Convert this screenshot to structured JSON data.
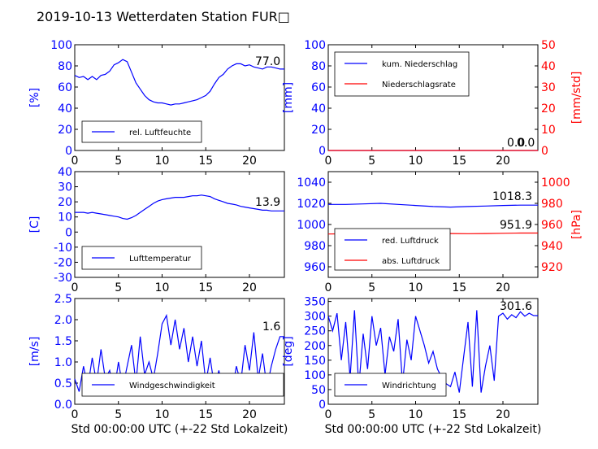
{
  "title": "2019-10-13 Wetterdaten Station FUR□",
  "x_axis_label": "Std 00:00:00 UTC (+-22 Std Lokalzeit)",
  "colors": {
    "left": "#0000ff",
    "right": "#ff0000",
    "frame": "#000000"
  },
  "chart_data": [
    {
      "id": "humidity",
      "type": "line",
      "xlim": [
        0,
        24
      ],
      "ylim": [
        0,
        100
      ],
      "xticks": [
        0,
        5,
        10,
        15,
        20
      ],
      "yticks": [
        0,
        20,
        40,
        60,
        80,
        100
      ],
      "ylabel": "[%]",
      "legend": [
        "rel. Luftfeuchte"
      ],
      "legend_position": "lower-left",
      "annotation": "77.0",
      "series": [
        {
          "name": "rel. Luftfeuchte",
          "axis": "left",
          "x": [
            0,
            0.5,
            1,
            1.5,
            2,
            2.5,
            3,
            3.5,
            4,
            4.5,
            5,
            5.5,
            6,
            6.5,
            7,
            7.5,
            8,
            8.5,
            9,
            9.5,
            10,
            10.5,
            11,
            11.5,
            12,
            12.5,
            13,
            13.5,
            14,
            14.5,
            15,
            15.5,
            16,
            16.5,
            17,
            17.5,
            18,
            18.5,
            19,
            19.5,
            20,
            20.5,
            21,
            21.5,
            22,
            22.5,
            23,
            23.5,
            24
          ],
          "y": [
            71,
            69,
            70,
            67,
            70,
            67,
            71,
            72,
            75,
            81,
            83,
            86,
            84,
            74,
            64,
            58,
            52,
            48,
            46,
            45,
            45,
            44,
            43,
            44,
            44,
            45,
            46,
            47,
            48,
            50,
            52,
            56,
            63,
            69,
            72,
            77,
            80,
            82,
            82,
            80,
            81,
            79,
            78,
            77,
            79,
            79,
            78,
            77,
            77
          ]
        }
      ]
    },
    {
      "id": "precipitation",
      "type": "line",
      "xlim": [
        0,
        24
      ],
      "ylim": [
        0,
        100
      ],
      "y2lim": [
        0,
        50
      ],
      "xticks": [
        0,
        5,
        10,
        15,
        20
      ],
      "yticks": [
        0,
        20,
        40,
        60,
        80,
        100
      ],
      "y2ticks": [
        0,
        10,
        20,
        30,
        40,
        50
      ],
      "ylabel": "[mm]",
      "y2label": "[mm/std]",
      "legend": [
        "kum. Niederschlag",
        "Niederschlagsrate"
      ],
      "legend_position": "upper-left",
      "annotations": [
        "0.0",
        "0.0"
      ],
      "series": [
        {
          "name": "kum. Niederschlag",
          "axis": "left",
          "x": [
            0,
            24
          ],
          "y": [
            0,
            0
          ]
        },
        {
          "name": "Niederschlagsrate",
          "axis": "right",
          "x": [
            0,
            24
          ],
          "y": [
            0,
            0
          ]
        }
      ]
    },
    {
      "id": "temperature",
      "type": "line",
      "xlim": [
        0,
        24
      ],
      "ylim": [
        -30,
        40
      ],
      "xticks": [
        0,
        5,
        10,
        15,
        20
      ],
      "yticks": [
        -30,
        -20,
        -10,
        0,
        10,
        20,
        30,
        40
      ],
      "ylabel": "[C]",
      "legend": [
        "Lufttemperatur"
      ],
      "legend_position": "lower-left",
      "annotation": "13.9",
      "series": [
        {
          "name": "Lufttemperatur",
          "axis": "left",
          "x": [
            0,
            0.5,
            1,
            1.5,
            2,
            2.5,
            3,
            3.5,
            4,
            4.5,
            5,
            5.5,
            6,
            6.5,
            7,
            7.5,
            8,
            8.5,
            9,
            9.5,
            10,
            10.5,
            11,
            11.5,
            12,
            12.5,
            13,
            13.5,
            14,
            14.5,
            15,
            15.5,
            16,
            16.5,
            17,
            17.5,
            18,
            18.5,
            19,
            19.5,
            20,
            20.5,
            21,
            21.5,
            22,
            22.5,
            23,
            23.5,
            24
          ],
          "y": [
            13,
            13,
            13,
            12.5,
            13,
            12.5,
            12,
            11.5,
            11,
            10.5,
            10,
            9,
            8.5,
            9.5,
            11,
            13,
            15,
            17,
            19,
            20.5,
            21.5,
            22,
            22.5,
            23,
            23,
            23,
            23.5,
            24,
            24,
            24.5,
            24,
            23.5,
            22,
            21,
            20,
            19,
            18.5,
            18,
            17,
            16.5,
            16,
            15.5,
            15,
            14.5,
            14.5,
            14,
            14,
            14,
            14
          ]
        }
      ]
    },
    {
      "id": "pressure",
      "type": "line",
      "xlim": [
        0,
        24
      ],
      "ylim": [
        950,
        1050
      ],
      "y2lim": [
        910,
        1010
      ],
      "xticks": [
        0,
        5,
        10,
        15,
        20
      ],
      "yticks": [
        960,
        980,
        1000,
        1020,
        1040
      ],
      "y2ticks": [
        920,
        940,
        960,
        980,
        1000
      ],
      "ylabel": "",
      "y2label": "[hPa]",
      "legend": [
        "red. Luftdruck",
        "abs. Luftdruck"
      ],
      "legend_position": "lower-left",
      "annotations": [
        "1018.3",
        "951.9"
      ],
      "series": [
        {
          "name": "red. Luftdruck",
          "axis": "left",
          "x": [
            0,
            2,
            4,
            6,
            8,
            10,
            12,
            14,
            16,
            18,
            20,
            22,
            24
          ],
          "y": [
            1019,
            1019,
            1019.5,
            1020,
            1019,
            1018,
            1017,
            1016.5,
            1017,
            1017.5,
            1018,
            1018.3,
            1018.3
          ]
        },
        {
          "name": "abs. Luftdruck",
          "axis": "right",
          "x": [
            0,
            2,
            4,
            6,
            8,
            10,
            12,
            14,
            16,
            18,
            20,
            22,
            24
          ],
          "y": [
            951,
            951.2,
            951.6,
            952,
            952.5,
            952.2,
            951.8,
            951.5,
            951.3,
            951.5,
            951.7,
            951.9,
            951.9
          ]
        }
      ]
    },
    {
      "id": "windspeed",
      "type": "line",
      "xlim": [
        0,
        24
      ],
      "ylim": [
        0,
        2.5
      ],
      "xticks": [
        0,
        5,
        10,
        15,
        20
      ],
      "yticks": [
        0.0,
        0.5,
        1.0,
        1.5,
        2.0,
        2.5
      ],
      "ylabel": "[m/s]",
      "xlabel": "Std 00:00:00 UTC (+-22 Std Lokalzeit)",
      "legend": [
        "Windgeschwindigkeit"
      ],
      "legend_position": "lower-left",
      "annotation": "1.6",
      "series": [
        {
          "name": "Windgeschwindigkeit",
          "axis": "left",
          "x": [
            0,
            0.5,
            1,
            1.5,
            2,
            2.5,
            3,
            3.5,
            4,
            4.5,
            5,
            5.5,
            6,
            6.5,
            7,
            7.5,
            8,
            8.5,
            9,
            9.5,
            10,
            10.5,
            11,
            11.5,
            12,
            12.5,
            13,
            13.5,
            14,
            14.5,
            15,
            15.5,
            16,
            16.5,
            17,
            17.5,
            18,
            18.5,
            19,
            19.5,
            20,
            20.5,
            21,
            21.5,
            22,
            22.5,
            23,
            23.5,
            24
          ],
          "y": [
            0.6,
            0.3,
            0.9,
            0.4,
            1.1,
            0.5,
            1.3,
            0.6,
            0.8,
            0.3,
            1.0,
            0.4,
            0.9,
            1.4,
            0.5,
            1.6,
            0.7,
            1.0,
            0.6,
            1.2,
            1.9,
            2.1,
            1.4,
            2.0,
            1.3,
            1.8,
            1.0,
            1.6,
            0.9,
            1.5,
            0.5,
            1.1,
            0.4,
            0.8,
            0.2,
            0.6,
            0.3,
            0.9,
            0.5,
            1.4,
            0.8,
            1.7,
            0.6,
            1.2,
            0.4,
            0.9,
            1.3,
            1.6,
            1.6
          ]
        }
      ]
    },
    {
      "id": "winddirection",
      "type": "line",
      "xlim": [
        0,
        24
      ],
      "ylim": [
        0,
        360
      ],
      "xticks": [
        0,
        5,
        10,
        15,
        20
      ],
      "yticks": [
        0,
        50,
        100,
        150,
        200,
        250,
        300,
        350
      ],
      "ylabel": "[deg]",
      "xlabel": "Std 00:00:00 UTC (+-22 Std Lokalzeit)",
      "legend": [
        "Windrichtung"
      ],
      "legend_position": "lower-left",
      "annotation": "301.6",
      "series": [
        {
          "name": "Windrichtung",
          "axis": "left",
          "x": [
            0,
            0.5,
            1,
            1.5,
            2,
            2.5,
            3,
            3.5,
            4,
            4.5,
            5,
            5.5,
            6,
            6.5,
            7,
            7.5,
            8,
            8.5,
            9,
            9.5,
            10,
            10.5,
            11,
            11.5,
            12,
            12.5,
            13,
            13.5,
            14,
            14.5,
            15,
            15.5,
            16,
            16.5,
            17,
            17.5,
            18,
            18.5,
            19,
            19.5,
            20,
            20.5,
            21,
            21.5,
            22,
            22.5,
            23,
            23.5,
            24
          ],
          "y": [
            300,
            250,
            310,
            150,
            280,
            90,
            320,
            60,
            240,
            120,
            300,
            200,
            260,
            100,
            230,
            180,
            290,
            70,
            220,
            150,
            300,
            250,
            200,
            140,
            180,
            120,
            90,
            70,
            60,
            110,
            40,
            160,
            280,
            60,
            320,
            40,
            130,
            200,
            80,
            300,
            310,
            290,
            305,
            295,
            315,
            300,
            310,
            302,
            301.6
          ]
        }
      ]
    }
  ]
}
